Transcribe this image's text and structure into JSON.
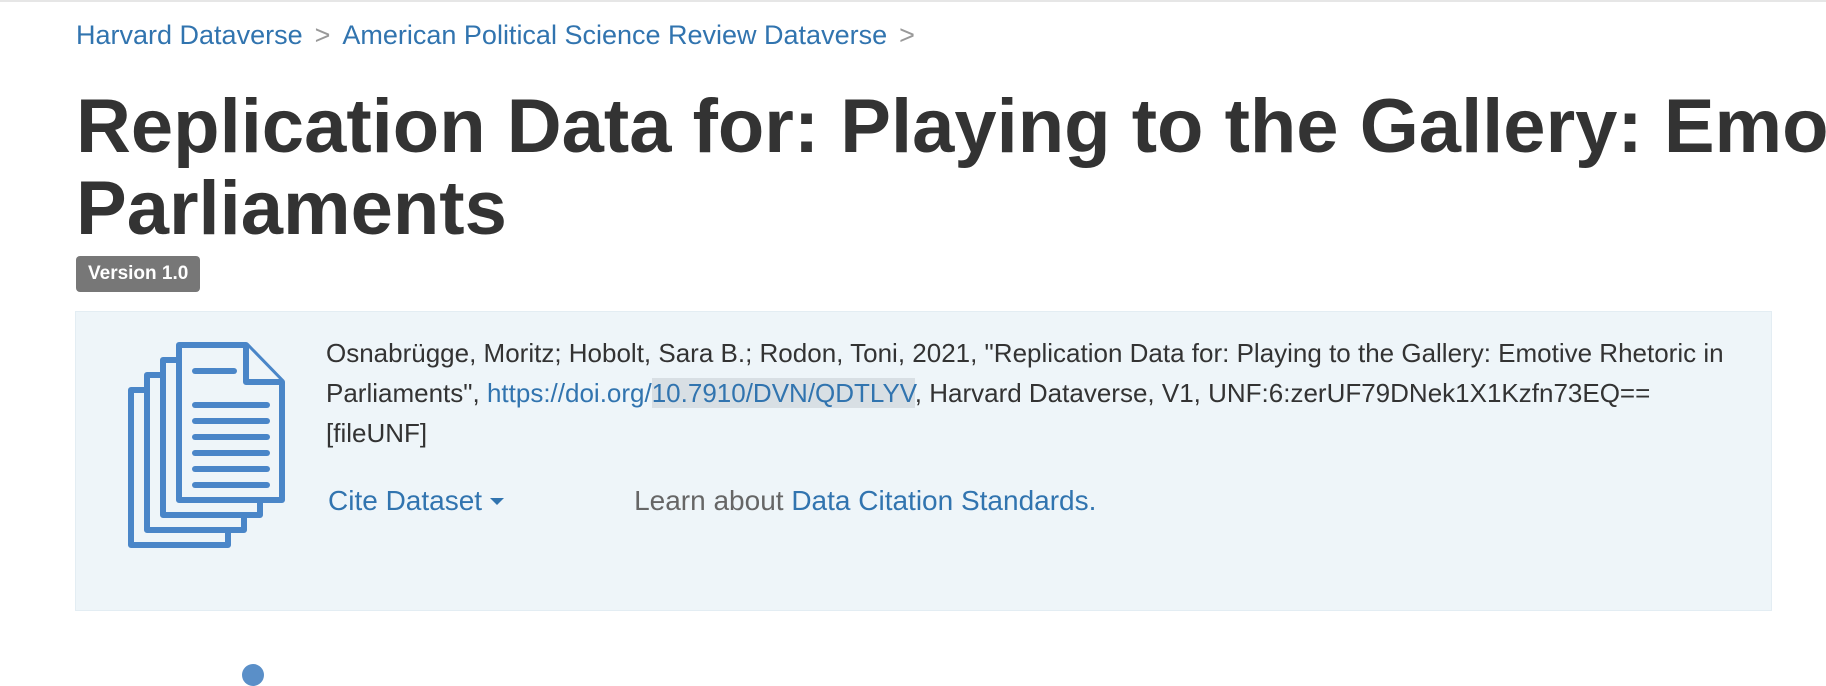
{
  "breadcrumb": {
    "items": [
      {
        "label": "Harvard Dataverse"
      },
      {
        "label": "American Political Science Review Dataverse"
      }
    ],
    "separator": ">"
  },
  "dataset": {
    "title_line1": "Replication Data for: Playing to the Gallery: Emotive",
    "title_line2": "Parliaments",
    "version_badge": "Version 1.0"
  },
  "citation": {
    "icon": "document-stack-icon",
    "text_before_link": "Osnabrügge, Moritz; Hobolt, Sara B.; Rodon, Toni, 2021, \"Replication Data for: Playing to the Gallery: Emotive Rhetoric in Parliaments\", ",
    "doi_prefix": "https://doi.org/",
    "doi_highlighted": "10.7910/DVN/QDTLYV",
    "text_after_link": ", Harvard Dataverse, V1, UNF:6:zerUF79DNek1X1Kzfn73EQ== [fileUNF]",
    "cite_button_label": "Cite Dataset",
    "learn_prefix": "Learn about ",
    "learn_link_label": "Data Citation Standards."
  },
  "colors": {
    "link": "#3174af",
    "panel_background": "#eef5f9",
    "badge_background": "#777777",
    "icon": "#4a86c8"
  }
}
